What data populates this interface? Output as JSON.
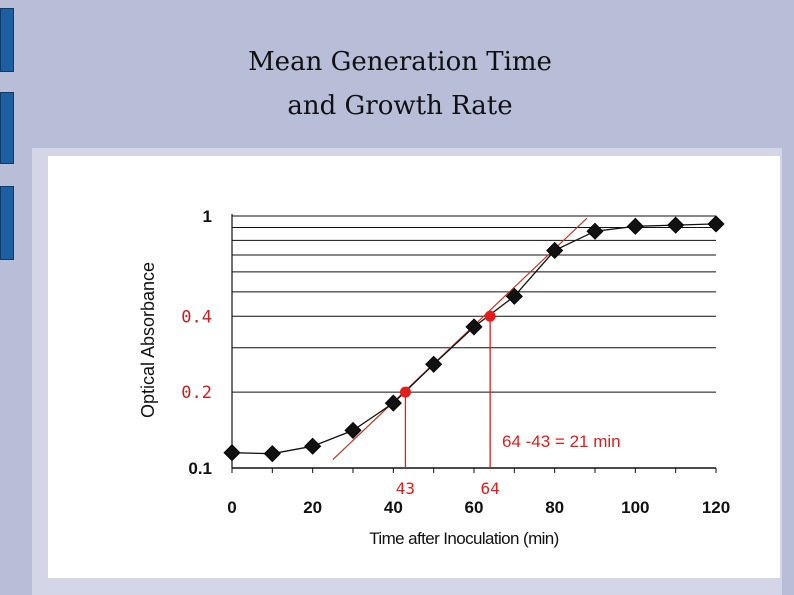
{
  "slide": {
    "title_line1": "Mean Generation Time",
    "title_line2": "and Growth Rate"
  },
  "colors": {
    "background": "#b8bdd8",
    "accent_bar": "#1d5fa0",
    "data_marker": "#111111",
    "highlight": "#e11d1d"
  },
  "chart_data": {
    "type": "line",
    "xlabel": "Time after Inoculation (min)",
    "ylabel": "Optical Absorbance",
    "y_scale": "log",
    "xlim": [
      0,
      120
    ],
    "ylim": [
      0.1,
      1
    ],
    "x_ticks": [
      0,
      20,
      40,
      60,
      80,
      100,
      120
    ],
    "y_ticks": [
      {
        "value": 0.1,
        "label": "0.1",
        "color": "#111111"
      },
      {
        "value": 0.2,
        "label": "0.2",
        "color": "#c81e1e"
      },
      {
        "value": 0.4,
        "label": "0.4",
        "color": "#c81e1e"
      },
      {
        "value": 1,
        "label": "1",
        "color": "#111111"
      }
    ],
    "gridlines": [
      0.1,
      0.2,
      0.3,
      0.4,
      0.5,
      0.6,
      0.7,
      0.8,
      0.9,
      1
    ],
    "grid": true,
    "series": [
      {
        "x": [
          0,
          10,
          20,
          30,
          40,
          50,
          60,
          70,
          80,
          90,
          100,
          110,
          120
        ],
        "y": [
          0.115,
          0.114,
          0.122,
          0.141,
          0.181,
          0.258,
          0.363,
          0.48,
          0.73,
          0.87,
          0.91,
          0.92,
          0.93
        ],
        "marker": "diamond",
        "color": "#111111"
      }
    ],
    "fit_line": {
      "x": [
        25,
        88
      ],
      "y": [
        0.108,
        0.98
      ],
      "color": "#c0392b"
    },
    "highlight_points": [
      {
        "x": 43,
        "y": 0.2,
        "label": "43"
      },
      {
        "x": 64,
        "y": 0.4,
        "label": "64"
      }
    ],
    "annotation": "64 -43 = 21 min"
  }
}
